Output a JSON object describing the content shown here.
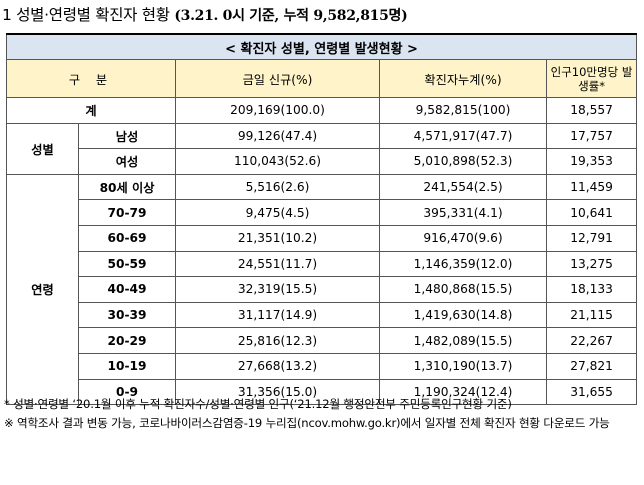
{
  "heading": {
    "main": "1  성별·연령별 확진자 현황",
    "sub": "(3.21. 0시 기준, 누적 9,582,815명)"
  },
  "table": {
    "title": "< 확진자 성별, 연령별 발생현황 >",
    "headers": {
      "category": "구 분",
      "today": "금일 신규(%)",
      "cumulative": "확진자누계(%)",
      "per100k": "인구10만명당 발생률*"
    },
    "total": {
      "label": "계",
      "today": "209,169(100.0)",
      "cumulative": "9,582,815(100)",
      "per100k": "18,557"
    },
    "sex_label": "성별",
    "sex": [
      {
        "label": "남성",
        "today": "99,126(47.4)",
        "cumulative": "4,571,917(47.7)",
        "per100k": "17,757"
      },
      {
        "label": "여성",
        "today": "110,043(52.6)",
        "cumulative": "5,010,898(52.3)",
        "per100k": "19,353"
      }
    ],
    "age_label": "연령",
    "age": [
      {
        "label": "80세 이상",
        "today": "5,516(2.6)",
        "cumulative": "241,554(2.5)",
        "per100k": "11,459"
      },
      {
        "label": "70-79",
        "today": "9,475(4.5)",
        "cumulative": "395,331(4.1)",
        "per100k": "10,641"
      },
      {
        "label": "60-69",
        "today": "21,351(10.2)",
        "cumulative": "916,470(9.6)",
        "per100k": "12,791"
      },
      {
        "label": "50-59",
        "today": "24,551(11.7)",
        "cumulative": "1,146,359(12.0)",
        "per100k": "13,275"
      },
      {
        "label": "40-49",
        "today": "32,319(15.5)",
        "cumulative": "1,480,868(15.5)",
        "per100k": "18,133"
      },
      {
        "label": "30-39",
        "today": "31,117(14.9)",
        "cumulative": "1,419,630(14.8)",
        "per100k": "21,115"
      },
      {
        "label": "20-29",
        "today": "25,816(12.3)",
        "cumulative": "1,482,089(15.5)",
        "per100k": "22,267"
      },
      {
        "label": "10-19",
        "today": "27,668(13.2)",
        "cumulative": "1,310,190(13.7)",
        "per100k": "27,821"
      },
      {
        "label": "0-9",
        "today": "31,356(15.0)",
        "cumulative": "1,190,324(12.4)",
        "per100k": "31,655"
      }
    ]
  },
  "notes": [
    "* 성별·연령별 ‘20.1월 이후 누적 확진자수/성별·연령별 인구(‘21.12월 행정안전부 주민등록인구현황 기준)",
    "※ 역학조사 결과 변동 가능, 코로나바이러스감염증-19 누리집(ncov.mohw.go.kr)에서 일자별 전체 확진자 현황 다운로드 가능"
  ]
}
